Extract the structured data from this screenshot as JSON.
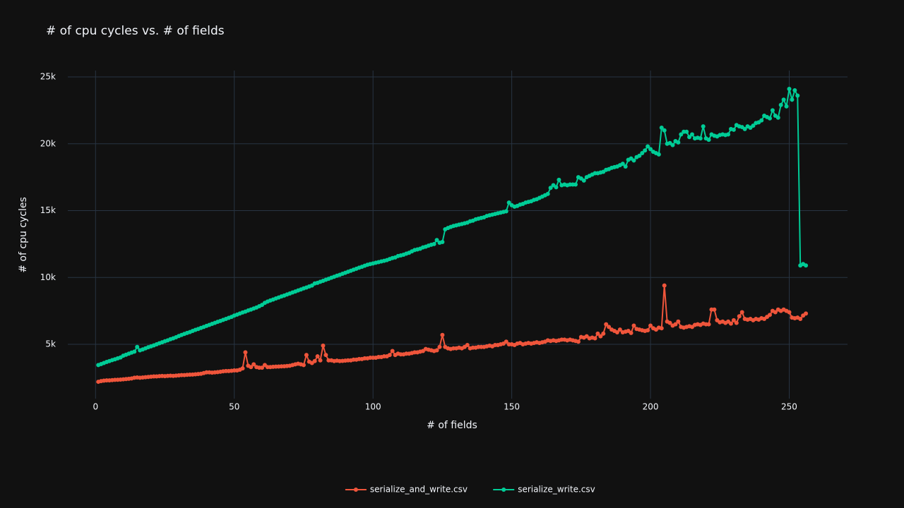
{
  "chart_data": {
    "type": "line",
    "title": "# of cpu cycles vs. # of fields",
    "x_label": "# of fields",
    "y_label": "# of cpu cycles",
    "xlim": [
      -10,
      271
    ],
    "ylim": [
      937,
      25475
    ],
    "xticks": [
      0,
      50,
      100,
      150,
      200,
      250
    ],
    "yticks": [
      {
        "value": 5000,
        "label": "5k"
      },
      {
        "value": 10000,
        "label": "10k"
      },
      {
        "value": 15000,
        "label": "15k"
      },
      {
        "value": 20000,
        "label": "20k"
      },
      {
        "value": 25000,
        "label": "25k"
      }
    ],
    "grid": true,
    "legend": "bottom",
    "x": [
      1,
      2,
      3,
      4,
      5,
      6,
      7,
      8,
      9,
      10,
      11,
      12,
      13,
      14,
      15,
      16,
      17,
      18,
      19,
      20,
      21,
      22,
      23,
      24,
      25,
      26,
      27,
      28,
      29,
      30,
      31,
      32,
      33,
      34,
      35,
      36,
      37,
      38,
      39,
      40,
      41,
      42,
      43,
      44,
      45,
      46,
      47,
      48,
      49,
      50,
      51,
      52,
      53,
      54,
      55,
      56,
      57,
      58,
      59,
      60,
      61,
      62,
      63,
      64,
      65,
      66,
      67,
      68,
      69,
      70,
      71,
      72,
      73,
      74,
      75,
      76,
      77,
      78,
      79,
      80,
      81,
      82,
      83,
      84,
      85,
      86,
      87,
      88,
      89,
      90,
      91,
      92,
      93,
      94,
      95,
      96,
      97,
      98,
      99,
      100,
      101,
      102,
      103,
      104,
      105,
      106,
      107,
      108,
      109,
      110,
      111,
      112,
      113,
      114,
      115,
      116,
      117,
      118,
      119,
      120,
      121,
      122,
      123,
      124,
      125,
      126,
      127,
      128,
      129,
      130,
      131,
      132,
      133,
      134,
      135,
      136,
      137,
      138,
      139,
      140,
      141,
      142,
      143,
      144,
      145,
      146,
      147,
      148,
      149,
      150,
      151,
      152,
      153,
      154,
      155,
      156,
      157,
      158,
      159,
      160,
      161,
      162,
      163,
      164,
      165,
      166,
      167,
      168,
      169,
      170,
      171,
      172,
      173,
      174,
      175,
      176,
      177,
      178,
      179,
      180,
      181,
      182,
      183,
      184,
      185,
      186,
      187,
      188,
      189,
      190,
      191,
      192,
      193,
      194,
      195,
      196,
      197,
      198,
      199,
      200,
      201,
      202,
      203,
      204,
      205,
      206,
      207,
      208,
      209,
      210,
      211,
      212,
      213,
      214,
      215,
      216,
      217,
      218,
      219,
      220,
      221,
      222,
      223,
      224,
      225,
      226,
      227,
      228,
      229,
      230,
      231,
      232,
      233,
      234,
      235,
      236,
      237,
      238,
      239,
      240,
      241,
      242,
      243,
      244,
      245,
      246,
      247,
      248,
      249,
      250,
      251,
      252,
      253,
      254,
      255,
      256
    ],
    "series": [
      {
        "name": "serialize_and_write.csv",
        "color": "#EF553B",
        "values": [
          2200,
          2250,
          2280,
          2300,
          2300,
          2320,
          2340,
          2350,
          2360,
          2380,
          2400,
          2420,
          2450,
          2500,
          2520,
          2500,
          2520,
          2540,
          2560,
          2580,
          2600,
          2600,
          2620,
          2630,
          2620,
          2640,
          2650,
          2640,
          2660,
          2680,
          2700,
          2700,
          2720,
          2730,
          2740,
          2760,
          2780,
          2800,
          2850,
          2900,
          2900,
          2880,
          2900,
          2920,
          2950,
          2980,
          3000,
          3000,
          3020,
          3050,
          3050,
          3100,
          3200,
          4400,
          3400,
          3300,
          3500,
          3300,
          3250,
          3250,
          3450,
          3300,
          3300,
          3320,
          3330,
          3340,
          3350,
          3360,
          3380,
          3400,
          3450,
          3500,
          3550,
          3500,
          3450,
          4200,
          3700,
          3600,
          3750,
          4100,
          3800,
          4900,
          4200,
          3800,
          3800,
          3750,
          3780,
          3750,
          3760,
          3780,
          3800,
          3800,
          3850,
          3850,
          3900,
          3900,
          3950,
          3950,
          4000,
          4000,
          4000,
          4050,
          4050,
          4100,
          4100,
          4200,
          4500,
          4200,
          4300,
          4250,
          4250,
          4300,
          4300,
          4350,
          4400,
          4400,
          4450,
          4500,
          4650,
          4600,
          4550,
          4500,
          4550,
          4800,
          5700,
          4800,
          4700,
          4650,
          4700,
          4700,
          4750,
          4700,
          4800,
          4950,
          4700,
          4750,
          4750,
          4800,
          4800,
          4800,
          4850,
          4900,
          4850,
          4950,
          4950,
          5000,
          5050,
          5200,
          5000,
          5000,
          4950,
          5050,
          5100,
          5000,
          5050,
          5100,
          5050,
          5100,
          5150,
          5100,
          5150,
          5200,
          5300,
          5250,
          5300,
          5250,
          5300,
          5350,
          5350,
          5300,
          5350,
          5300,
          5250,
          5200,
          5550,
          5500,
          5600,
          5450,
          5500,
          5450,
          5800,
          5600,
          5800,
          6500,
          6300,
          6100,
          6000,
          5900,
          6100,
          5900,
          5950,
          6000,
          5850,
          6400,
          6150,
          6100,
          6050,
          6000,
          6050,
          6400,
          6200,
          6100,
          6250,
          6200,
          9400,
          6700,
          6600,
          6400,
          6500,
          6700,
          6300,
          6250,
          6300,
          6350,
          6300,
          6450,
          6500,
          6450,
          6550,
          6500,
          6500,
          7600,
          7600,
          6800,
          6650,
          6700,
          6600,
          6700,
          6550,
          6800,
          6600,
          7100,
          7400,
          6900,
          6850,
          6900,
          6800,
          6900,
          6850,
          6950,
          6900,
          7050,
          7200,
          7500,
          7400,
          7600,
          7500,
          7600,
          7500,
          7400,
          7000,
          6950,
          7000,
          6900,
          7150,
          7300
        ]
      },
      {
        "name": "serialize_write.csv",
        "color": "#00CC96",
        "values": [
          3450,
          3520,
          3600,
          3680,
          3750,
          3820,
          3880,
          3950,
          4020,
          4150,
          4220,
          4300,
          4380,
          4450,
          4800,
          4550,
          4620,
          4700,
          4780,
          4850,
          4920,
          5000,
          5080,
          5150,
          5230,
          5300,
          5380,
          5450,
          5530,
          5620,
          5700,
          5780,
          5850,
          5920,
          6000,
          6080,
          6150,
          6230,
          6300,
          6380,
          6450,
          6530,
          6600,
          6680,
          6750,
          6830,
          6900,
          6980,
          7050,
          7150,
          7220,
          7300,
          7380,
          7450,
          7530,
          7600,
          7680,
          7750,
          7850,
          7950,
          8100,
          8200,
          8280,
          8350,
          8430,
          8500,
          8580,
          8650,
          8730,
          8800,
          8880,
          8950,
          9030,
          9100,
          9180,
          9250,
          9330,
          9400,
          9550,
          9600,
          9680,
          9750,
          9830,
          9900,
          9980,
          10050,
          10130,
          10200,
          10280,
          10350,
          10430,
          10500,
          10580,
          10650,
          10730,
          10800,
          10880,
          10950,
          11000,
          11050,
          11100,
          11150,
          11200,
          11250,
          11300,
          11380,
          11450,
          11500,
          11600,
          11650,
          11700,
          11780,
          11850,
          11950,
          12050,
          12100,
          12150,
          12250,
          12300,
          12380,
          12450,
          12500,
          12800,
          12600,
          12650,
          13600,
          13700,
          13780,
          13850,
          13900,
          13950,
          14000,
          14050,
          14100,
          14200,
          14250,
          14350,
          14400,
          14450,
          14500,
          14600,
          14650,
          14700,
          14750,
          14800,
          14850,
          14900,
          14950,
          15600,
          15400,
          15300,
          15350,
          15450,
          15500,
          15600,
          15650,
          15700,
          15800,
          15850,
          15950,
          16050,
          16150,
          16250,
          16700,
          16900,
          16750,
          17300,
          16900,
          16950,
          16900,
          16950,
          16950,
          16950,
          17500,
          17400,
          17250,
          17500,
          17600,
          17700,
          17800,
          17800,
          17850,
          17900,
          18050,
          18100,
          18200,
          18250,
          18300,
          18400,
          18500,
          18300,
          18800,
          18900,
          18750,
          19000,
          19100,
          19300,
          19500,
          19800,
          19600,
          19400,
          19300,
          19200,
          21200,
          21000,
          20000,
          20050,
          19900,
          20200,
          20100,
          20700,
          20900,
          20900,
          20500,
          20700,
          20400,
          20450,
          20400,
          21300,
          20400,
          20300,
          20700,
          20600,
          20550,
          20650,
          20700,
          20650,
          20700,
          21100,
          21050,
          21400,
          21300,
          21250,
          21100,
          21300,
          21200,
          21350,
          21550,
          21600,
          21750,
          22100,
          22000,
          21900,
          22500,
          22100,
          21950,
          22900,
          23300,
          22800,
          24100,
          23300,
          24000,
          23600,
          10900,
          11000,
          10900
        ]
      }
    ]
  }
}
